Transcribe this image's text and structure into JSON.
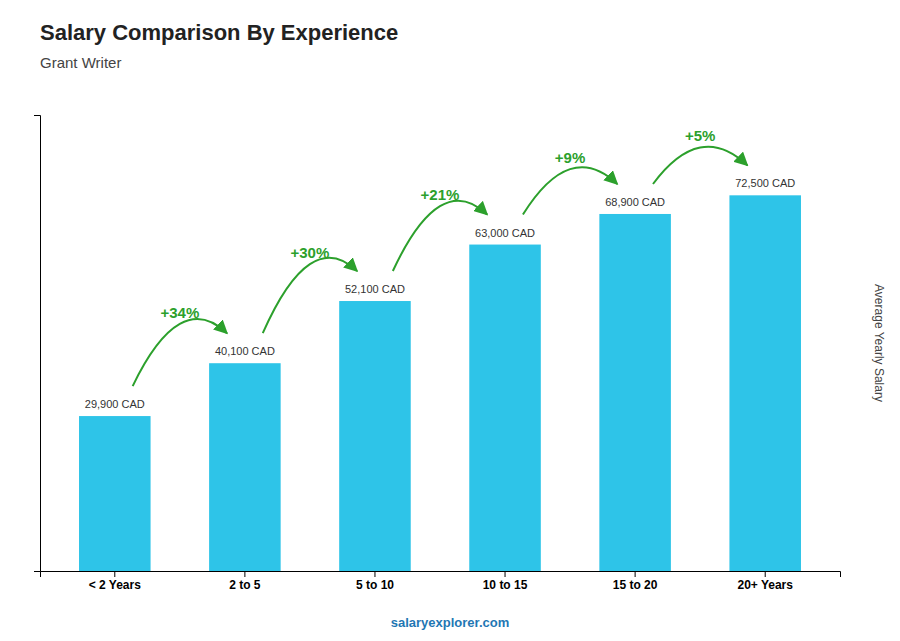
{
  "chart_data": {
    "type": "bar",
    "title": "Salary Comparison By Experience",
    "subtitle": "Grant Writer",
    "categories": [
      "< 2 Years",
      "2 to 5",
      "5 to 10",
      "10 to 15",
      "15 to 20",
      "20+ Years"
    ],
    "values": [
      29900,
      40100,
      52100,
      63000,
      68900,
      72500
    ],
    "value_labels": [
      "29,900 CAD",
      "40,100 CAD",
      "52,100 CAD",
      "63,000 CAD",
      "68,900 CAD",
      "72,500 CAD"
    ],
    "data_labels": true,
    "annotations": [
      "+34%",
      "+30%",
      "+21%",
      "+9%",
      "+5%"
    ],
    "color": "#2EC4E8",
    "ylabel": "Average Yearly Salary",
    "ylim": [
      0,
      88000
    ],
    "tick_labels": "x",
    "footer": "salaryexplorer.com"
  }
}
